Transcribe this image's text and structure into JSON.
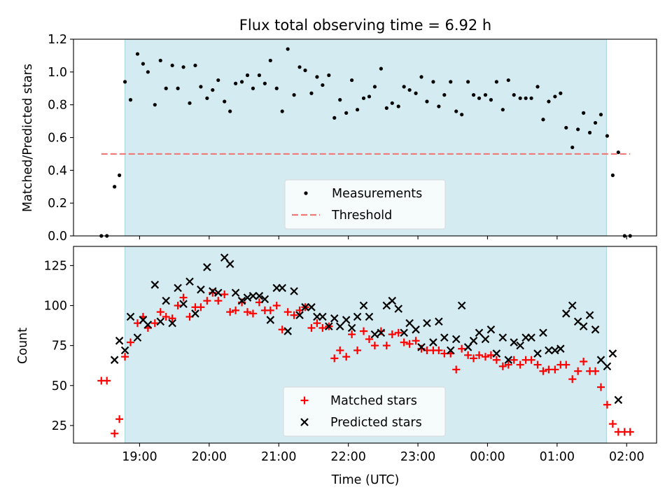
{
  "chart_data": [
    {
      "type": "scatter",
      "title": "Flux total observing time = 6.92 h",
      "xlabel": "",
      "ylabel": "Matched/Predicted stars",
      "xlim": [
        18.05,
        26.43
      ],
      "ylim": [
        0,
        1.2
      ],
      "yticks": [
        0.0,
        0.2,
        0.4,
        0.6,
        0.8,
        1.0,
        1.2
      ],
      "ytick_labels": [
        "0.0",
        "0.2",
        "0.4",
        "0.6",
        "0.8",
        "1.0",
        "1.2"
      ],
      "shaded_region": [
        18.79,
        25.71
      ],
      "shaded_color": "#d3ebf1",
      "legend_position": "lower center",
      "series": [
        {
          "name": "Measurements",
          "marker": "dot",
          "color": "#000000",
          "x": [
            18.45,
            18.53,
            18.64,
            18.71,
            18.79,
            18.87,
            18.97,
            19.05,
            19.12,
            19.22,
            19.3,
            19.38,
            19.47,
            19.55,
            19.63,
            19.72,
            19.8,
            19.88,
            19.97,
            20.05,
            20.13,
            20.22,
            20.3,
            20.38,
            20.47,
            20.55,
            20.63,
            20.72,
            20.8,
            20.88,
            20.97,
            21.05,
            21.13,
            21.22,
            21.3,
            21.38,
            21.47,
            21.55,
            21.63,
            21.72,
            21.8,
            21.88,
            21.97,
            22.05,
            22.13,
            22.22,
            22.3,
            22.38,
            22.47,
            22.55,
            22.63,
            22.72,
            22.8,
            22.88,
            22.97,
            23.05,
            23.13,
            23.22,
            23.3,
            23.38,
            23.47,
            23.55,
            23.63,
            23.72,
            23.8,
            23.88,
            23.97,
            24.05,
            24.13,
            24.22,
            24.3,
            24.38,
            24.47,
            24.55,
            24.63,
            24.72,
            24.8,
            24.88,
            24.97,
            25.05,
            25.13,
            25.22,
            25.3,
            25.38,
            25.47,
            25.55,
            25.63,
            25.72,
            25.8,
            25.88,
            25.97,
            26.05
          ],
          "y": [
            0.0,
            0.0,
            0.3,
            0.37,
            0.94,
            0.83,
            1.11,
            1.05,
            1.0,
            0.8,
            1.07,
            0.9,
            1.04,
            0.9,
            1.03,
            0.81,
            1.04,
            0.91,
            0.84,
            0.89,
            0.95,
            0.82,
            0.76,
            0.93,
            0.94,
            0.98,
            0.9,
            0.98,
            0.93,
            1.07,
            0.9,
            0.76,
            1.14,
            0.86,
            1.03,
            1.01,
            0.87,
            0.97,
            0.92,
            0.98,
            0.72,
            0.83,
            0.75,
            0.95,
            0.77,
            0.84,
            0.85,
            0.91,
            1.02,
            0.78,
            0.81,
            0.79,
            0.91,
            0.89,
            0.87,
            0.97,
            0.82,
            0.94,
            0.79,
            0.86,
            0.94,
            0.76,
            0.74,
            0.94,
            0.86,
            0.84,
            0.86,
            0.83,
            0.94,
            0.77,
            0.95,
            0.86,
            0.84,
            0.84,
            0.84,
            0.91,
            0.71,
            0.82,
            0.85,
            0.87,
            0.66,
            0.54,
            0.65,
            0.75,
            0.63,
            0.69,
            0.74,
            0.61,
            0.37,
            0.51,
            0.0,
            0.0
          ]
        },
        {
          "name": "Threshold",
          "marker": "dashed-line",
          "color": "#f07a78",
          "x": [
            18.45,
            26.05
          ],
          "y": [
            0.5,
            0.5
          ]
        }
      ]
    },
    {
      "type": "scatter",
      "title": "",
      "xlabel": "Time (UTC)",
      "ylabel": "Count",
      "xlim": [
        18.05,
        26.43
      ],
      "ylim": [
        14,
        137
      ],
      "xticks": [
        19,
        20,
        21,
        22,
        23,
        24,
        25,
        26
      ],
      "xtick_labels": [
        "19:00",
        "20:00",
        "21:00",
        "22:00",
        "23:00",
        "00:00",
        "01:00",
        "02:00"
      ],
      "yticks": [
        25,
        50,
        75,
        100,
        125
      ],
      "ytick_labels": [
        "25",
        "50",
        "75",
        "100",
        "125"
      ],
      "shaded_region": [
        18.79,
        25.71
      ],
      "shaded_color": "#d3ebf1",
      "legend_position": "lower center",
      "series": [
        {
          "name": "Matched stars",
          "marker": "plus",
          "color": "#ff0000",
          "x": [
            18.45,
            18.53,
            18.64,
            18.71,
            18.79,
            18.87,
            18.97,
            19.05,
            19.12,
            19.22,
            19.3,
            19.38,
            19.47,
            19.55,
            19.63,
            19.72,
            19.8,
            19.88,
            19.97,
            20.05,
            20.13,
            20.22,
            20.3,
            20.38,
            20.47,
            20.55,
            20.63,
            20.72,
            20.8,
            20.88,
            20.97,
            21.05,
            21.13,
            21.22,
            21.3,
            21.38,
            21.47,
            21.55,
            21.63,
            21.72,
            21.8,
            21.88,
            21.97,
            22.05,
            22.13,
            22.22,
            22.3,
            22.38,
            22.47,
            22.55,
            22.63,
            22.72,
            22.8,
            22.88,
            22.97,
            23.05,
            23.13,
            23.22,
            23.3,
            23.38,
            23.47,
            23.55,
            23.63,
            23.72,
            23.8,
            23.88,
            23.97,
            24.05,
            24.13,
            24.22,
            24.3,
            24.38,
            24.47,
            24.55,
            24.63,
            24.72,
            24.8,
            24.88,
            24.97,
            25.05,
            25.13,
            25.22,
            25.3,
            25.38,
            25.47,
            25.55,
            25.63,
            25.72,
            25.8,
            25.88,
            25.97,
            26.05
          ],
          "y": [
            53,
            53,
            20,
            29,
            68,
            77,
            89,
            93,
            86,
            89,
            96,
            93,
            92,
            100,
            105,
            93,
            99,
            99,
            103,
            108,
            103,
            107,
            96,
            97,
            102,
            96,
            95,
            102,
            97,
            97,
            100,
            85,
            96,
            94,
            97,
            99,
            86,
            89,
            86,
            87,
            67,
            72,
            68,
            82,
            72,
            84,
            79,
            75,
            84,
            75,
            82,
            83,
            77,
            76,
            78,
            73,
            72,
            72,
            72,
            70,
            70,
            60,
            73,
            69,
            67,
            69,
            68,
            69,
            66,
            62,
            63,
            66,
            63,
            66,
            66,
            63,
            59,
            60,
            60,
            63,
            63,
            54,
            59,
            65,
            59,
            59,
            49,
            38,
            26,
            21,
            21,
            21
          ]
        },
        {
          "name": "Predicted stars",
          "marker": "x",
          "color": "#000000",
          "x": [
            18.64,
            18.71,
            18.79,
            18.87,
            18.97,
            19.05,
            19.12,
            19.22,
            19.3,
            19.38,
            19.47,
            19.55,
            19.63,
            19.72,
            19.8,
            19.88,
            19.97,
            20.05,
            20.13,
            20.22,
            20.3,
            20.38,
            20.47,
            20.55,
            20.63,
            20.72,
            20.8,
            20.88,
            20.97,
            21.05,
            21.13,
            21.22,
            21.3,
            21.38,
            21.47,
            21.55,
            21.63,
            21.72,
            21.8,
            21.88,
            21.97,
            22.05,
            22.13,
            22.22,
            22.3,
            22.38,
            22.47,
            22.55,
            22.63,
            22.72,
            22.8,
            22.88,
            22.97,
            23.05,
            23.13,
            23.22,
            23.3,
            23.38,
            23.47,
            23.55,
            23.63,
            23.72,
            23.8,
            23.88,
            23.97,
            24.05,
            24.13,
            24.22,
            24.3,
            24.38,
            24.47,
            24.55,
            24.63,
            24.72,
            24.8,
            24.88,
            24.97,
            25.05,
            25.13,
            25.22,
            25.3,
            25.38,
            25.47,
            25.55,
            25.63,
            25.72,
            25.8,
            25.88
          ],
          "y": [
            66,
            78,
            72,
            93,
            80,
            91,
            88,
            113,
            90,
            103,
            89,
            111,
            101,
            115,
            95,
            110,
            124,
            109,
            108,
            130,
            126,
            108,
            103,
            105,
            106,
            106,
            104,
            91,
            111,
            111,
            84,
            109,
            94,
            99,
            99,
            93,
            93,
            87,
            92,
            87,
            91,
            86,
            93,
            100,
            93,
            82,
            83,
            100,
            103,
            98,
            83,
            89,
            85,
            74,
            89,
            77,
            90,
            80,
            72,
            79,
            100,
            74,
            78,
            83,
            79,
            85,
            70,
            80,
            66,
            77,
            75,
            80,
            80,
            70,
            83,
            72,
            72,
            73,
            95,
            100,
            90,
            87,
            94,
            85,
            66,
            62,
            70,
            41
          ]
        }
      ]
    }
  ]
}
